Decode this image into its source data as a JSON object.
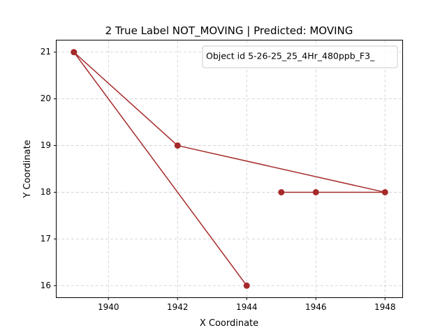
{
  "chart_data": {
    "type": "line",
    "title": "2 True Label NOT_MOVING | Predicted: MOVING",
    "xlabel": "X Coordinate",
    "ylabel": "Y Coordinate",
    "xlim": [
      1938.5,
      1948.5
    ],
    "ylim": [
      15.75,
      21.25
    ],
    "xticks": [
      1940,
      1942,
      1944,
      1946,
      1948
    ],
    "yticks": [
      16,
      17,
      18,
      19,
      20,
      21
    ],
    "grid": true,
    "legend": {
      "placement": "top-right",
      "entries": [
        "Object id 5-26-25_25_4Hr_480ppb_F3_"
      ]
    },
    "series": [
      {
        "name": "Object id 5-26-25_25_4Hr_480ppb_F3_",
        "color": "#a52a2a",
        "marker": "circle",
        "x": [
          1945,
          1946,
          1948,
          1942,
          1939,
          1944
        ],
        "y": [
          18,
          18,
          18,
          19,
          21,
          16
        ]
      }
    ]
  }
}
